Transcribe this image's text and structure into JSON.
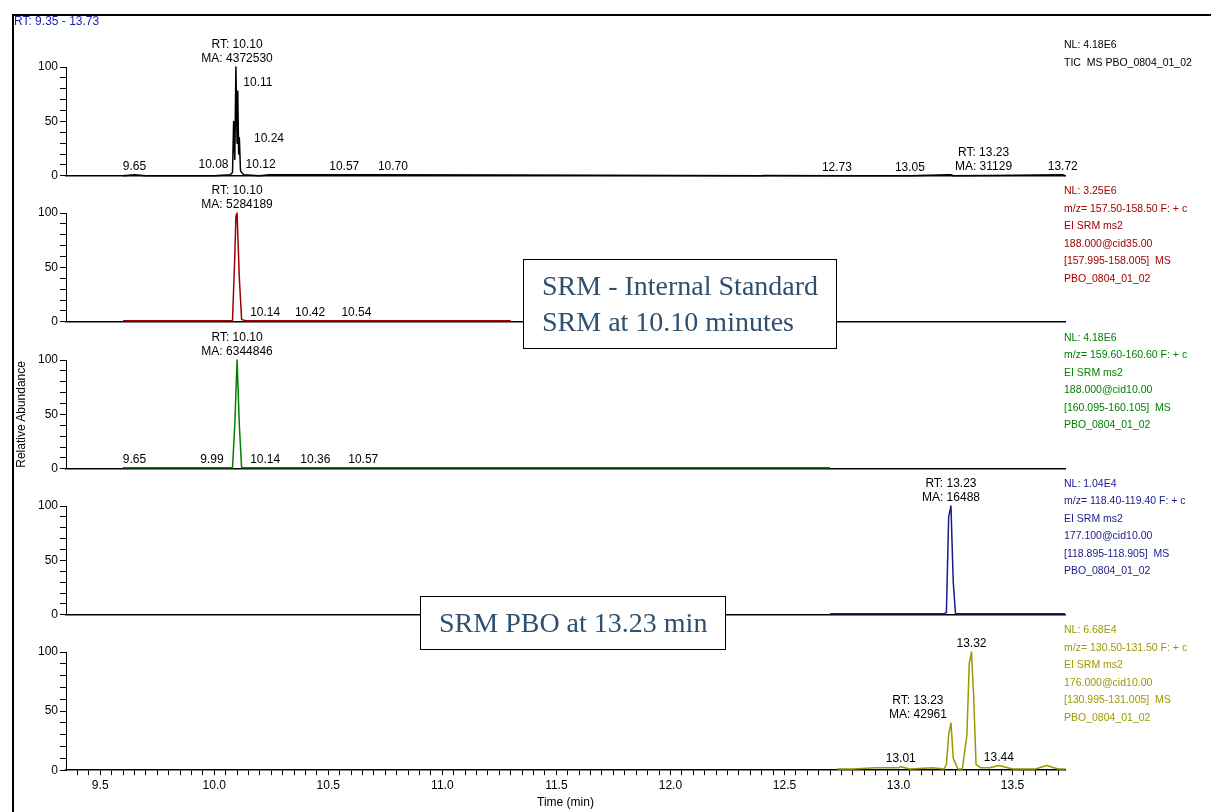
{
  "chart_data": [
    {
      "type": "line",
      "title": "RT: 9.35 - 13.73",
      "xlim": [
        9.35,
        13.73
      ],
      "ylim": [
        0,
        100
      ],
      "yticks": [
        0,
        {
          "value": 10,
          "label": null
        },
        {
          "value": 20,
          "label": null
        },
        {
          "value": 30,
          "label": null
        },
        {
          "value": 40,
          "label": null
        },
        50,
        {
          "value": 60,
          "label": null
        },
        {
          "value": 70,
          "label": null
        },
        {
          "value": 80,
          "label": null
        },
        {
          "value": 90,
          "label": null
        },
        100
      ],
      "tick_labels": "y",
      "series": [
        {
          "color": "#000000",
          "x": [
            9.6,
            9.65,
            9.7,
            10.0,
            10.07,
            10.08,
            10.085,
            10.09,
            10.095,
            10.1,
            10.103,
            10.107,
            10.11,
            10.115,
            10.12,
            10.13,
            10.2,
            10.24,
            10.57,
            10.7,
            12.73,
            13.05,
            13.22,
            13.23,
            13.24,
            13.72,
            13.73
          ],
          "values": [
            0,
            1,
            0,
            0,
            1,
            3,
            50,
            15,
            100,
            30,
            78,
            20,
            35,
            5,
            3,
            1,
            0,
            1,
            1,
            1,
            0,
            0,
            1,
            1,
            0,
            1,
            0
          ]
        }
      ],
      "annotations": [
        "NL: 4.18E6\nTIC  MS PBO_0804_01_02",
        {
          "text": "RT: 10.10\nMA: 4372530",
          "x": 10.1,
          "y": 100
        },
        {
          "text": "10.11",
          "x": 10.11,
          "y": 78
        },
        {
          "text": "10.08",
          "x": 10.08,
          "y": 3
        },
        {
          "text": "9.65",
          "x": 9.65,
          "y": 1
        },
        {
          "text": "10.12",
          "x": 10.12,
          "y": 3
        },
        {
          "text": "10.24",
          "x": 10.24,
          "y": 1
        },
        {
          "text": "10.57",
          "x": 10.57,
          "y": 1
        },
        {
          "text": "10.70",
          "x": 10.7,
          "y": 1
        },
        {
          "text": "12.73",
          "x": 12.73,
          "y": 0
        },
        {
          "text": "13.05",
          "x": 13.05,
          "y": 0
        },
        {
          "text": "RT: 13.23\nMA: 31129",
          "x": 13.23,
          "y": 1
        },
        {
          "text": "13.72",
          "x": 13.72,
          "y": 1
        }
      ]
    },
    {
      "type": "line",
      "xlim": [
        9.35,
        13.73
      ],
      "ylim": [
        0,
        100
      ],
      "yticks": [
        0,
        {
          "value": 10,
          "label": null
        },
        {
          "value": 20,
          "label": null
        },
        {
          "value": 30,
          "label": null
        },
        {
          "value": 40,
          "label": null
        },
        50,
        {
          "value": 60,
          "label": null
        },
        {
          "value": 70,
          "label": null
        },
        {
          "value": 80,
          "label": null
        },
        {
          "value": 90,
          "label": null
        },
        100
      ],
      "tick_labels": "y",
      "series": [
        {
          "color": "#a00000",
          "x": [
            9.6,
            10.07,
            10.08,
            10.09,
            10.095,
            10.1,
            10.11,
            10.12,
            10.14,
            10.2,
            10.42,
            10.54,
            11.3
          ],
          "values": [
            1,
            1,
            1,
            60,
            97,
            100,
            40,
            2,
            1,
            1,
            1,
            1,
            1
          ]
        }
      ],
      "annotations": [
        "NL: 3.25E6\nm/z= 157.50-158.50 F: + c\nEI SRM ms2\n188.000@cid35.00\n[157.995-158.005]  MS\nPBO_0804_01_02",
        "SRM - Internal Standard\nSRM at 10.10 minutes",
        {
          "text": "RT: 10.10\nMA: 5284189",
          "x": 10.1,
          "y": 100
        },
        {
          "text": "10.14",
          "x": 10.14,
          "y": 1
        },
        {
          "text": "10.42",
          "x": 10.42,
          "y": 1
        },
        {
          "text": "10.54",
          "x": 10.54,
          "y": 1
        }
      ]
    },
    {
      "type": "line",
      "ylabel": "Relative Abundance",
      "xlim": [
        9.35,
        13.73
      ],
      "ylim": [
        0,
        100
      ],
      "yticks": [
        0,
        {
          "value": 10,
          "label": null
        },
        {
          "value": 20,
          "label": null
        },
        {
          "value": 30,
          "label": null
        },
        {
          "value": 40,
          "label": null
        },
        50,
        {
          "value": 60,
          "label": null
        },
        {
          "value": 70,
          "label": null
        },
        {
          "value": 80,
          "label": null
        },
        {
          "value": 90,
          "label": null
        },
        100
      ],
      "tick_labels": "y",
      "series": [
        {
          "color": "#008000",
          "x": [
            9.6,
            9.65,
            9.99,
            10.08,
            10.09,
            10.1,
            10.11,
            10.12,
            10.14,
            10.36,
            10.57,
            12.7
          ],
          "values": [
            1,
            1,
            1,
            1,
            40,
            100,
            40,
            1,
            1,
            1,
            1,
            1
          ]
        }
      ],
      "annotations": [
        "NL: 4.18E6\nm/z= 159.60-160.60 F: + c\nEI SRM ms2\n188.000@cid10.00\n[160.095-160.105]  MS\nPBO_0804_01_02",
        {
          "text": "RT: 10.10\nMA: 6344846",
          "x": 10.1,
          "y": 100
        },
        {
          "text": "9.65",
          "x": 9.65,
          "y": 1
        },
        {
          "text": "9.99",
          "x": 9.99,
          "y": 1
        },
        {
          "text": "10.14",
          "x": 10.14,
          "y": 1
        },
        {
          "text": "10.36",
          "x": 10.36,
          "y": 1
        },
        {
          "text": "10.57",
          "x": 10.57,
          "y": 1
        }
      ]
    },
    {
      "type": "line",
      "xlim": [
        9.35,
        13.73
      ],
      "ylim": [
        0,
        100
      ],
      "yticks": [
        0,
        {
          "value": 10,
          "label": null
        },
        {
          "value": 20,
          "label": null
        },
        {
          "value": 30,
          "label": null
        },
        {
          "value": 40,
          "label": null
        },
        50,
        {
          "value": 60,
          "label": null
        },
        {
          "value": 70,
          "label": null
        },
        {
          "value": 80,
          "label": null
        },
        {
          "value": 90,
          "label": null
        },
        100
      ],
      "tick_labels": "y",
      "series": [
        {
          "color": "#1a1a8c",
          "x": [
            12.7,
            13.2,
            13.21,
            13.22,
            13.23,
            13.24,
            13.25,
            13.73
          ],
          "values": [
            1,
            1,
            2,
            90,
            100,
            30,
            1,
            1
          ]
        }
      ],
      "annotations": [
        "NL: 1.04E4\nm/z= 118.40-119.40 F: + c\nEI SRM ms2\n177.100@cid10.00\n[118.895-118.905]  MS\nPBO_0804_01_02",
        "SRM PBO at 13.23 min",
        {
          "text": "RT: 13.23\nMA: 16488",
          "x": 13.23,
          "y": 100
        }
      ]
    },
    {
      "type": "line",
      "xlabel": "Time (min)",
      "xlim": [
        9.35,
        13.73
      ],
      "ylim": [
        0,
        100
      ],
      "yticks": [
        0,
        {
          "value": 10,
          "label": null
        },
        {
          "value": 20,
          "label": null
        },
        {
          "value": 30,
          "label": null
        },
        {
          "value": 40,
          "label": null
        },
        50,
        {
          "value": 60,
          "label": null
        },
        {
          "value": 70,
          "label": null
        },
        {
          "value": 80,
          "label": null
        },
        {
          "value": 90,
          "label": null
        },
        100
      ],
      "xticks": [
        {
          "value": 9.4,
          "label": null
        },
        {
          "value": 9.45,
          "label": null
        },
        9.5,
        {
          "value": 9.55,
          "label": null
        },
        {
          "value": 9.6,
          "label": null
        },
        {
          "value": 9.65,
          "label": null
        },
        {
          "value": 9.7,
          "label": null
        },
        {
          "value": 9.75,
          "label": null
        },
        {
          "value": 9.8,
          "label": null
        },
        {
          "value": 9.85,
          "label": null
        },
        {
          "value": 9.9,
          "label": null
        },
        {
          "value": 9.95,
          "label": null
        },
        {
          "value": 10,
          "label": "10.0"
        },
        {
          "value": 10.05,
          "label": null
        },
        {
          "value": 10.1,
          "label": null
        },
        {
          "value": 10.15,
          "label": null
        },
        {
          "value": 10.2,
          "label": null
        },
        {
          "value": 10.25,
          "label": null
        },
        {
          "value": 10.3,
          "label": null
        },
        {
          "value": 10.35,
          "label": null
        },
        {
          "value": 10.4,
          "label": null
        },
        {
          "value": 10.45,
          "label": null
        },
        10.5,
        {
          "value": 10.55,
          "label": null
        },
        {
          "value": 10.6,
          "label": null
        },
        {
          "value": 10.65,
          "label": null
        },
        {
          "value": 10.7,
          "label": null
        },
        {
          "value": 10.75,
          "label": null
        },
        {
          "value": 10.8,
          "label": null
        },
        {
          "value": 10.85,
          "label": null
        },
        {
          "value": 10.9,
          "label": null
        },
        {
          "value": 10.95,
          "label": null
        },
        {
          "value": 11,
          "label": "11.0"
        },
        {
          "value": 11.05,
          "label": null
        },
        {
          "value": 11.1,
          "label": null
        },
        {
          "value": 11.15,
          "label": null
        },
        {
          "value": 11.2,
          "label": null
        },
        {
          "value": 11.25,
          "label": null
        },
        {
          "value": 11.3,
          "label": null
        },
        {
          "value": 11.35,
          "label": null
        },
        {
          "value": 11.4,
          "label": null
        },
        {
          "value": 11.45,
          "label": null
        },
        11.5,
        {
          "value": 11.55,
          "label": null
        },
        {
          "value": 11.6,
          "label": null
        },
        {
          "value": 11.65,
          "label": null
        },
        {
          "value": 11.7,
          "label": null
        },
        {
          "value": 11.75,
          "label": null
        },
        {
          "value": 11.8,
          "label": null
        },
        {
          "value": 11.85,
          "label": null
        },
        {
          "value": 11.9,
          "label": null
        },
        {
          "value": 11.95,
          "label": null
        },
        {
          "value": 12,
          "label": "12.0"
        },
        {
          "value": 12.05,
          "label": null
        },
        {
          "value": 12.1,
          "label": null
        },
        {
          "value": 12.15,
          "label": null
        },
        {
          "value": 12.2,
          "label": null
        },
        {
          "value": 12.25,
          "label": null
        },
        {
          "value": 12.3,
          "label": null
        },
        {
          "value": 12.35,
          "label": null
        },
        {
          "value": 12.4,
          "label": null
        },
        {
          "value": 12.45,
          "label": null
        },
        12.5,
        {
          "value": 12.55,
          "label": null
        },
        {
          "value": 12.6,
          "label": null
        },
        {
          "value": 12.65,
          "label": null
        },
        {
          "value": 12.7,
          "label": null
        },
        {
          "value": 12.75,
          "label": null
        },
        {
          "value": 12.8,
          "label": null
        },
        {
          "value": 12.85,
          "label": null
        },
        {
          "value": 12.9,
          "label": null
        },
        {
          "value": 12.95,
          "label": null
        },
        {
          "value": 13,
          "label": "13.0"
        },
        {
          "value": 13.05,
          "label": null
        },
        {
          "value": 13.1,
          "label": null
        },
        {
          "value": 13.15,
          "label": null
        },
        {
          "value": 13.2,
          "label": null
        },
        {
          "value": 13.25,
          "label": null
        },
        {
          "value": 13.3,
          "label": null
        },
        {
          "value": 13.35,
          "label": null
        },
        {
          "value": 13.4,
          "label": null
        },
        {
          "value": 13.45,
          "label": null
        },
        13.5,
        {
          "value": 13.55,
          "label": null
        },
        {
          "value": 13.6,
          "label": null
        },
        {
          "value": 13.65,
          "label": null
        },
        {
          "value": 13.7,
          "label": null
        }
      ],
      "series": [
        {
          "color": "#9a9a00",
          "x": [
            12.73,
            12.8,
            12.9,
            13.0,
            13.01,
            13.05,
            13.15,
            13.2,
            13.21,
            13.22,
            13.23,
            13.24,
            13.26,
            13.28,
            13.3,
            13.31,
            13.32,
            13.33,
            13.34,
            13.36,
            13.4,
            13.44,
            13.5,
            13.6,
            13.65,
            13.7,
            13.73
          ],
          "values": [
            1,
            1,
            2,
            2,
            3,
            1,
            2,
            1,
            5,
            30,
            40,
            10,
            1,
            1,
            30,
            90,
            100,
            60,
            5,
            2,
            2,
            4,
            1,
            1,
            4,
            1,
            1
          ]
        }
      ],
      "annotations": [
        "NL: 6.68E4\nm/z= 130.50-131.50 F: + c\nEI SRM ms2\n176.000@cid10.00\n[130.995-131.005]  MS\nPBO_0804_01_02",
        {
          "text": "13.01",
          "x": 13.01,
          "y": 3
        },
        {
          "text": "RT: 13.23\nMA: 42961",
          "x": 13.23,
          "y": 40
        },
        {
          "text": "13.32",
          "x": 13.32,
          "y": 100
        },
        {
          "text": "13.44",
          "x": 13.44,
          "y": 4
        }
      ]
    }
  ]
}
